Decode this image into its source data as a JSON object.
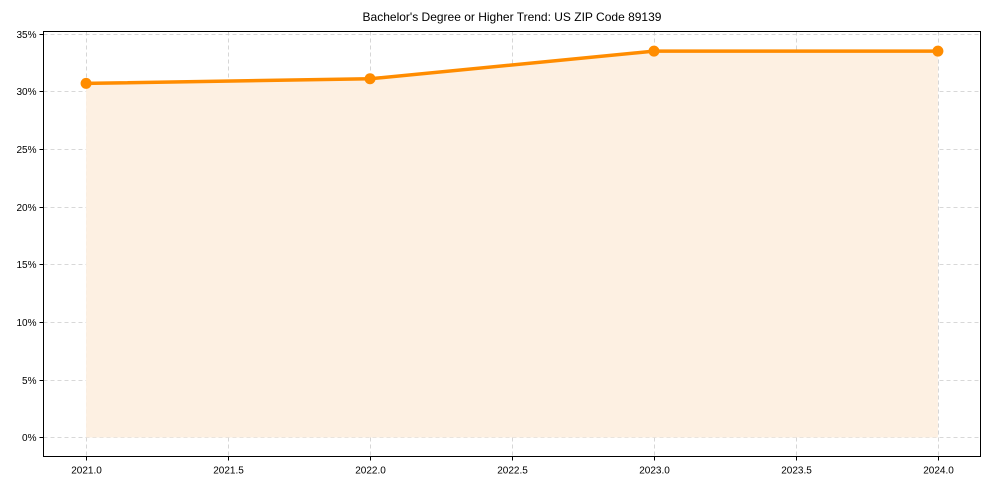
{
  "chart_data": {
    "type": "line",
    "title": "Bachelor's Degree or Higher Trend: US ZIP Code 89139",
    "xlabel": "",
    "ylabel": "",
    "x": [
      2021,
      2022,
      2023,
      2024
    ],
    "series": [
      {
        "name": "Bachelor's Degree or Higher",
        "values": [
          30.7,
          31.1,
          33.5,
          33.5
        ],
        "color": "#ff8c00",
        "fill": true
      }
    ],
    "x_ticks": [
      "2021.0",
      "2021.5",
      "2022.0",
      "2022.5",
      "2023.0",
      "2023.5",
      "2024.0"
    ],
    "y_ticks": [
      "0%",
      "5%",
      "10%",
      "15%",
      "20%",
      "25%",
      "30%",
      "35%"
    ],
    "xlim": [
      2020.85,
      2024.15
    ],
    "ylim": [
      -1.65,
      35.2
    ],
    "grid": true,
    "legend": false,
    "line_color": "#ff8c00",
    "fill_color": "#fdf0e2"
  }
}
